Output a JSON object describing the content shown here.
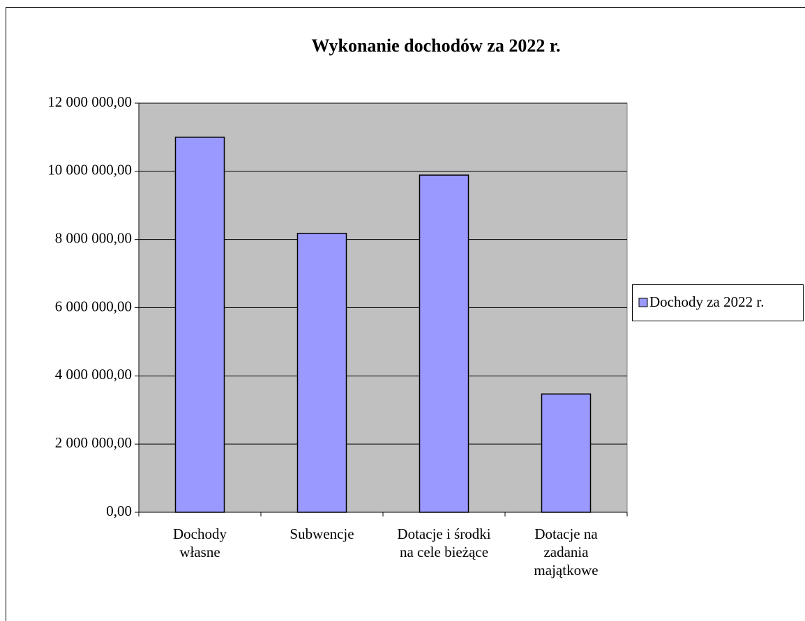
{
  "chart_data": {
    "type": "bar",
    "title": "Wykonanie  dochodów za 2022 r.",
    "categories": [
      "Dochody własne",
      "Subwencje",
      "Dotacje i środki na cele bieżące",
      "Dotacje na zadania majątkowe"
    ],
    "series": [
      {
        "name": "Dochody za 2022 r.",
        "color": "#9999ff",
        "values": [
          11000000,
          8180000,
          9890000,
          3470000
        ]
      }
    ],
    "ylim": [
      0,
      12000000
    ],
    "yticks": [
      {
        "value": 0,
        "label": "0,00"
      },
      {
        "value": 2000000,
        "label": "2 000 000,00"
      },
      {
        "value": 4000000,
        "label": "4 000 000,00"
      },
      {
        "value": 6000000,
        "label": "6 000 000,00"
      },
      {
        "value": 8000000,
        "label": "8 000 000,00"
      },
      {
        "value": 10000000,
        "label": "10 000 000,00"
      },
      {
        "value": 12000000,
        "label": "12 000 000,00"
      }
    ],
    "grid": true,
    "legend": "right"
  }
}
